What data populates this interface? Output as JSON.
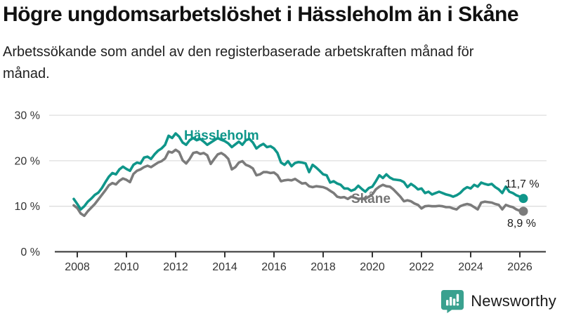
{
  "header": {
    "title": "Högre ungdomsarbetslöshet i Hässleholm än i Skåne",
    "subtitle": "Arbetssökande som andel av den registerbaserade arbetskraften månad för månad."
  },
  "colors": {
    "accent_teal": "#0f968a",
    "line_gray": "#7b7b7b",
    "skane_label_gray": "#757575",
    "grid": "#dddddd",
    "axis": "#333333",
    "text": "#1a1a1a",
    "logo_teal": "#3aa18f"
  },
  "chart_data": {
    "type": "line",
    "title": "Högre ungdomsarbetslöshet i Hässleholm än i Skåne",
    "subtitle": "Arbetssökande som andel av den registerbaserade arbetskraften månad för månad.",
    "grid": "horizontal",
    "legend_position": "inline-labels",
    "x_axis": {
      "tick_years": [
        2008,
        2010,
        2012,
        2014,
        2016,
        2018,
        2020,
        2022,
        2024,
        2026
      ]
    },
    "y_axis": {
      "ticks": [
        {
          "value": 0,
          "label": "0 %"
        },
        {
          "value": 10,
          "label": "10 %"
        },
        {
          "value": 20,
          "label": "20 %"
        },
        {
          "value": 30,
          "label": "30 %"
        }
      ],
      "range": [
        0,
        30
      ],
      "unit": "%"
    },
    "x_start": 2007.857,
    "x_step": 0.142857,
    "series": [
      {
        "name": "Skåne",
        "color": "#7b7b7b",
        "label_color": "#757575",
        "end_label": "8,9 %",
        "end_value": 8.9,
        "values": [
          10.2,
          9.6,
          8.4,
          7.9,
          8.9,
          9.7,
          10.5,
          11.5,
          12.5,
          13.5,
          14.6,
          15.1,
          14.8,
          15.6,
          16.1,
          15.8,
          15.3,
          17.1,
          17.8,
          18.1,
          18.6,
          18.9,
          18.6,
          19.1,
          19.6,
          19.9,
          20.5,
          22.0,
          21.8,
          22.4,
          21.9,
          20.1,
          19.4,
          20.4,
          21.7,
          21.9,
          21.5,
          21.7,
          21.2,
          19.3,
          20.4,
          21.4,
          21.7,
          21.2,
          20.4,
          18.1,
          18.6,
          19.6,
          19.9,
          19.1,
          18.8,
          18.3,
          16.8,
          17.0,
          17.5,
          17.5,
          17.3,
          17.4,
          16.8,
          15.5,
          15.7,
          15.8,
          15.7,
          16.0,
          15.5,
          15.0,
          15.1,
          14.4,
          14.2,
          14.4,
          14.3,
          14.2,
          13.9,
          13.4,
          12.9,
          12.1,
          11.9,
          12.0,
          11.6,
          12.1,
          11.9,
          11.6,
          11.7,
          11.6,
          12.1,
          12.6,
          13.7,
          14.3,
          14.7,
          14.4,
          14.3,
          13.7,
          12.9,
          12.1,
          11.1,
          11.3,
          11.1,
          10.6,
          10.3,
          9.5,
          10.0,
          10.1,
          10.0,
          10.0,
          10.1,
          10.0,
          9.8,
          9.8,
          9.5,
          9.3,
          10.0,
          10.3,
          10.5,
          10.3,
          9.8,
          9.3,
          10.8,
          11.0,
          10.9,
          10.8,
          10.5,
          10.3,
          9.3,
          10.3,
          10.0,
          9.8,
          9.3,
          9.0,
          8.9
        ]
      },
      {
        "name": "Hässleholm",
        "color": "#0f968a",
        "label_color": "#0f968a",
        "end_label": "11,7 %",
        "end_value": 11.7,
        "values": [
          11.6,
          10.5,
          9.3,
          10.0,
          11.0,
          11.7,
          12.5,
          13.0,
          14.0,
          15.3,
          16.5,
          17.3,
          17.0,
          18.1,
          18.7,
          18.2,
          17.8,
          19.1,
          19.6,
          19.4,
          20.7,
          20.9,
          20.4,
          21.4,
          22.2,
          22.7,
          23.5,
          25.5,
          25.0,
          26.0,
          25.3,
          24.0,
          23.5,
          24.5,
          25.0,
          24.5,
          24.8,
          24.2,
          23.5,
          24.0,
          24.5,
          25.0,
          24.6,
          24.3,
          23.8,
          23.0,
          23.6,
          24.2,
          23.5,
          24.5,
          24.8,
          24.0,
          22.7,
          23.3,
          23.7,
          23.0,
          23.2,
          22.7,
          21.7,
          19.6,
          19.1,
          19.9,
          18.8,
          19.5,
          19.7,
          19.6,
          19.4,
          17.5,
          19.1,
          18.5,
          17.8,
          17.0,
          16.8,
          15.2,
          15.5,
          15.0,
          14.7,
          13.9,
          13.9,
          13.4,
          13.7,
          14.5,
          13.8,
          13.2,
          14.0,
          14.3,
          15.5,
          16.8,
          16.2,
          17.0,
          16.3,
          15.9,
          15.8,
          15.7,
          15.3,
          14.2,
          14.9,
          14.4,
          13.7,
          13.9,
          12.9,
          13.2,
          12.6,
          12.9,
          13.2,
          12.9,
          12.6,
          12.4,
          12.1,
          12.4,
          12.9,
          13.7,
          14.2,
          13.9,
          14.7,
          14.3,
          15.2,
          14.9,
          14.7,
          14.9,
          14.2,
          13.7,
          12.9,
          14.3,
          13.2,
          12.9,
          12.4,
          12.1,
          11.7
        ]
      }
    ]
  },
  "footer": {
    "brand": "Newsworthy"
  }
}
